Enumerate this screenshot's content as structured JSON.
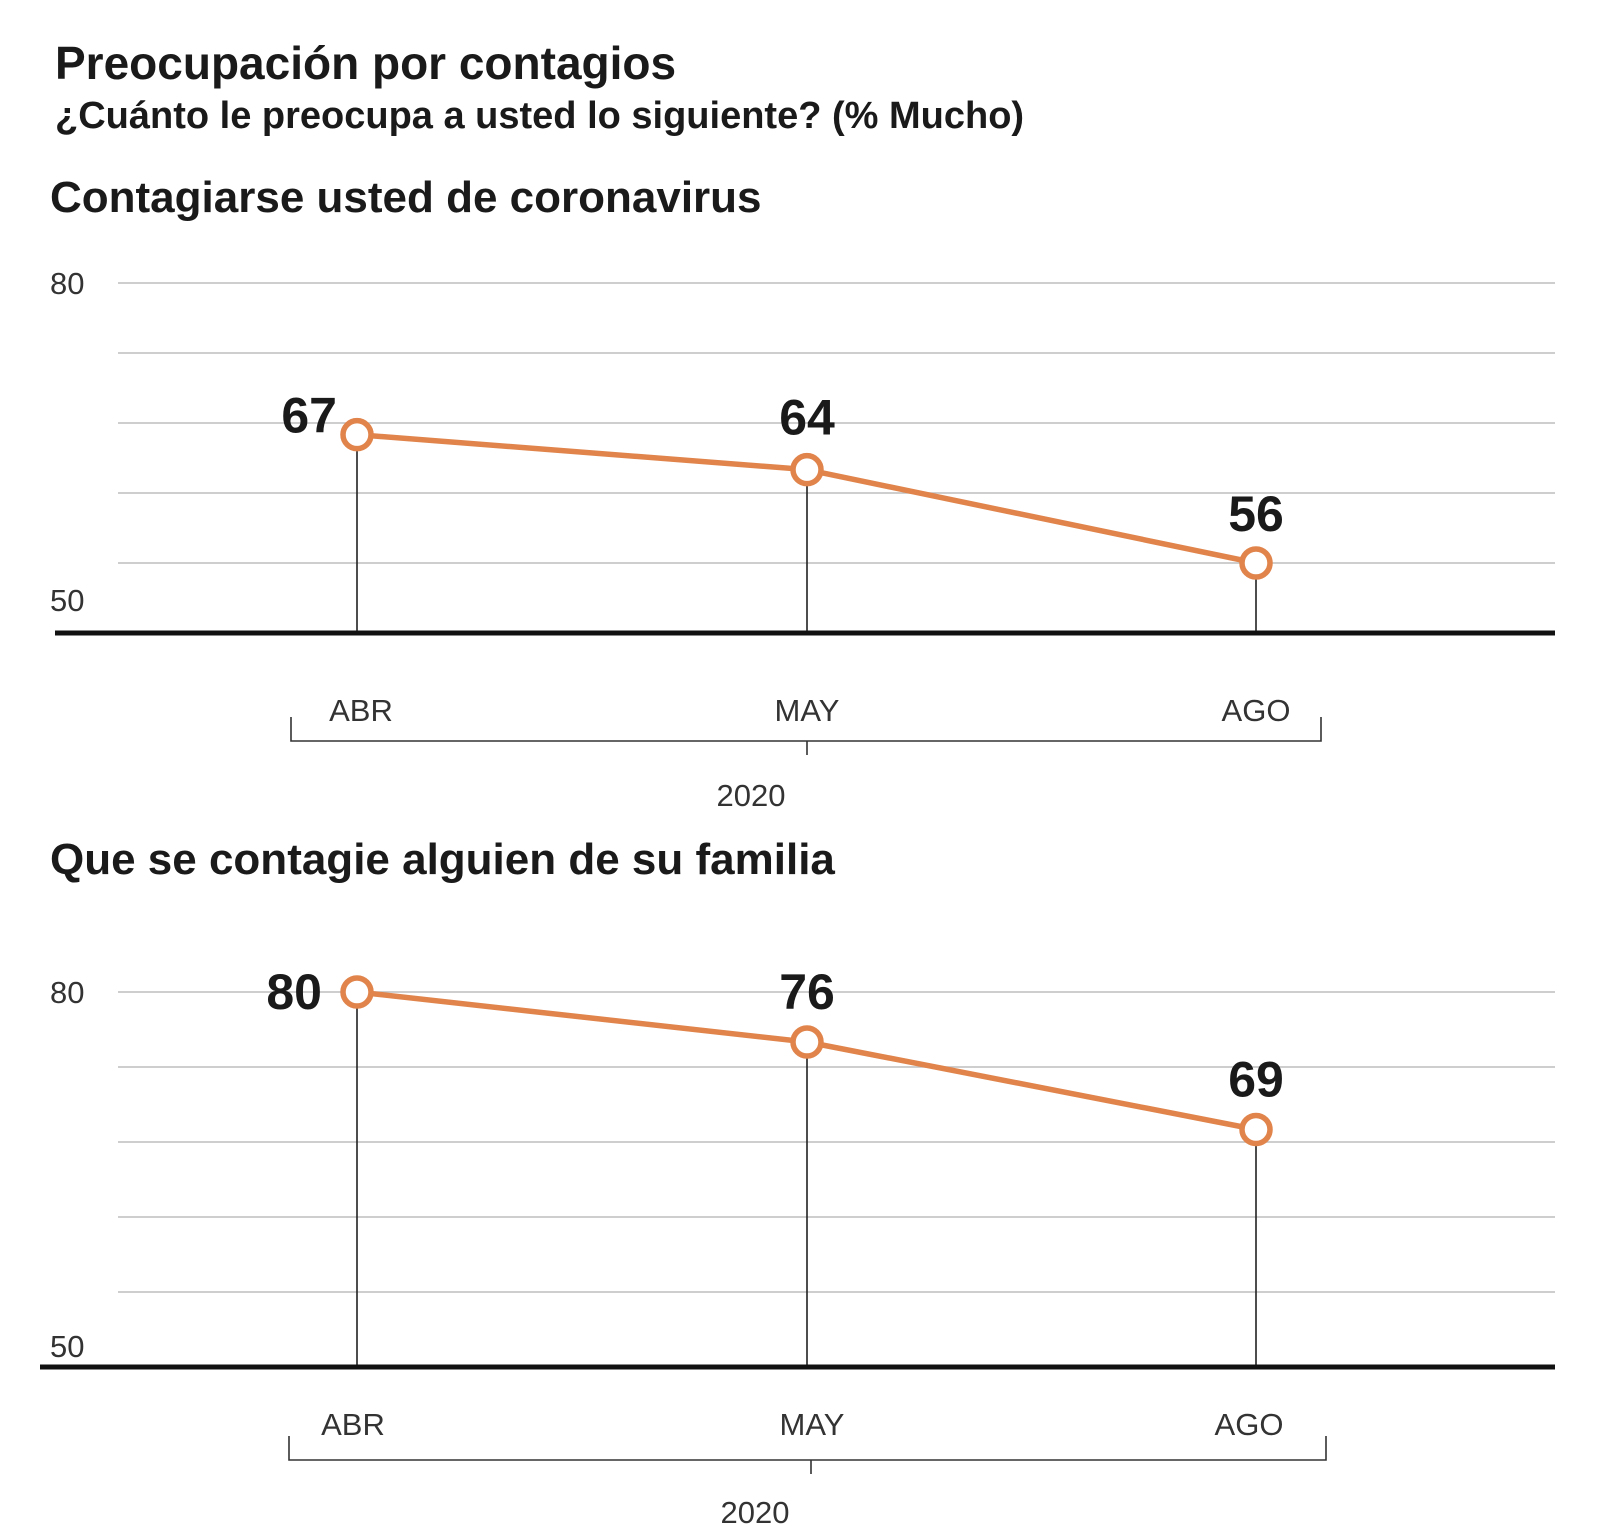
{
  "header": {
    "title": "Preocupación por contagios",
    "subtitle": "¿Cuánto le preocupa a usted lo siguiente?  (% Mucho)"
  },
  "colors": {
    "line": "#E0844B",
    "marker_fill": "#ffffff",
    "grid": "#bdbdbd",
    "axis": "#111111",
    "stem": "#222222"
  },
  "chart_data": [
    {
      "type": "line",
      "title": "Contagiarse usted de coronavirus",
      "categories": [
        "ABR",
        "MAY",
        "AGO"
      ],
      "values": [
        67,
        64,
        56
      ],
      "value_labels": [
        "67",
        "64",
        "56"
      ],
      "year_label": "2020",
      "ylim": [
        50,
        80
      ],
      "yticks": [
        80,
        50
      ],
      "ytick_labels": [
        "80",
        "50"
      ],
      "grid": true
    },
    {
      "type": "line",
      "title": "Que se contagie alguien de su familia",
      "categories": [
        "ABR",
        "MAY",
        "AGO"
      ],
      "values": [
        80,
        76,
        69
      ],
      "value_labels": [
        "80",
        "76",
        "69"
      ],
      "year_label": "2020",
      "ylim": [
        50,
        80
      ],
      "yticks": [
        80,
        50
      ],
      "ytick_labels": [
        "80",
        "50"
      ],
      "grid": true
    }
  ]
}
